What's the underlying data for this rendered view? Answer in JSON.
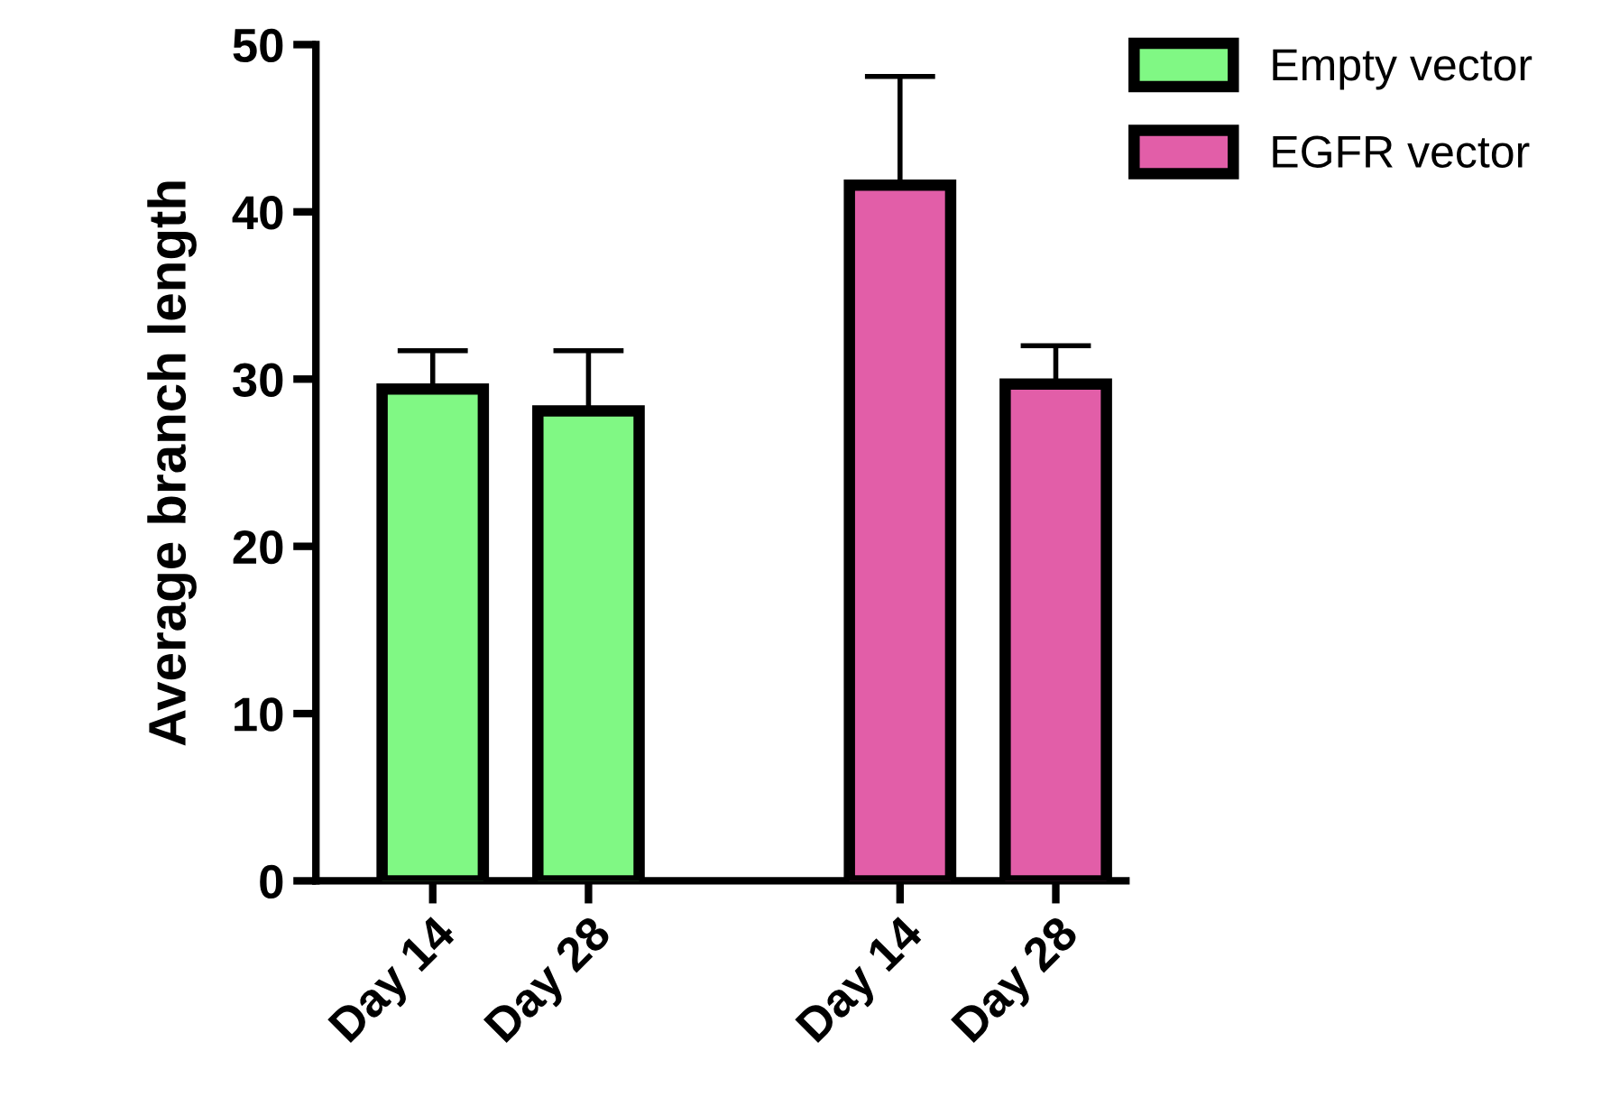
{
  "chart_data": {
    "type": "bar",
    "ylabel": "Average branch length",
    "categories": [
      "Day 14",
      "Day 28",
      null,
      "Day 14",
      "Day 28"
    ],
    "series": [
      {
        "name": "Empty vector",
        "color": "#80f884",
        "values": [
          29.4,
          28.1,
          null,
          null,
          null
        ],
        "errors": [
          2.3,
          3.6,
          null,
          null,
          null
        ]
      },
      {
        "name": "EGFR vector",
        "color": "#e25ea8",
        "values": [
          null,
          null,
          null,
          41.6,
          29.7
        ],
        "errors": [
          null,
          null,
          null,
          6.5,
          2.3
        ]
      }
    ],
    "ylim": [
      0,
      50
    ],
    "yticks": [
      0,
      10,
      20,
      30,
      40,
      50
    ],
    "grid": false,
    "legend": "top right"
  }
}
